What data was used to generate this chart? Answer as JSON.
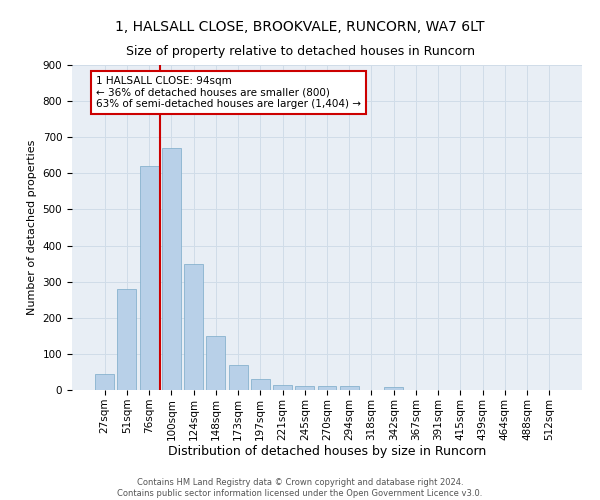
{
  "title1": "1, HALSALL CLOSE, BROOKVALE, RUNCORN, WA7 6LT",
  "title2": "Size of property relative to detached houses in Runcorn",
  "xlabel": "Distribution of detached houses by size in Runcorn",
  "ylabel": "Number of detached properties",
  "footer1": "Contains HM Land Registry data © Crown copyright and database right 2024.",
  "footer2": "Contains public sector information licensed under the Open Government Licence v3.0.",
  "bin_labels": [
    "27sqm",
    "51sqm",
    "76sqm",
    "100sqm",
    "124sqm",
    "148sqm",
    "173sqm",
    "197sqm",
    "221sqm",
    "245sqm",
    "270sqm",
    "294sqm",
    "318sqm",
    "342sqm",
    "367sqm",
    "391sqm",
    "415sqm",
    "439sqm",
    "464sqm",
    "488sqm",
    "512sqm"
  ],
  "bar_values": [
    45,
    280,
    620,
    670,
    350,
    150,
    70,
    30,
    15,
    12,
    12,
    10,
    0,
    8,
    0,
    0,
    0,
    0,
    0,
    0,
    0
  ],
  "bar_color": "#b8d0e8",
  "bar_edge_color": "#7aaac8",
  "annotation_text": "1 HALSALL CLOSE: 94sqm\n← 36% of detached houses are smaller (800)\n63% of semi-detached houses are larger (1,404) →",
  "annotation_box_color": "#ffffff",
  "annotation_box_edge": "#cc0000",
  "vline_color": "#cc0000",
  "grid_color": "#d0dce8",
  "background_color": "#e8eef5",
  "ylim": [
    0,
    900
  ],
  "yticks": [
    0,
    100,
    200,
    300,
    400,
    500,
    600,
    700,
    800,
    900
  ],
  "title1_fontsize": 10,
  "title2_fontsize": 9,
  "xlabel_fontsize": 9,
  "ylabel_fontsize": 8,
  "tick_fontsize": 7.5,
  "annotation_fontsize": 7.5,
  "footer_fontsize": 6
}
